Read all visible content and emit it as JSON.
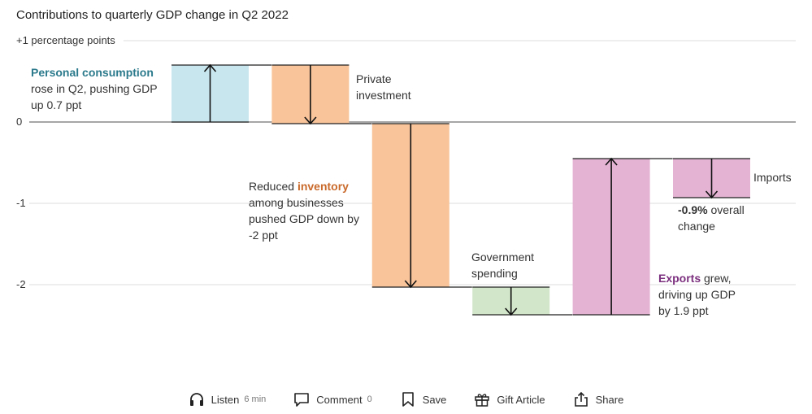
{
  "chart_data": {
    "type": "waterfall",
    "title": "Contributions to quarterly GDP change in Q2 2022",
    "y_unit_label": "+1 percentage points",
    "ylim": [
      -2.45,
      1.3
    ],
    "y_ticks": [
      1,
      0,
      -1,
      -2
    ],
    "y_tick_labels": [
      "+1 percentage points",
      "0",
      "-1",
      "-2"
    ],
    "grid": true,
    "steps": [
      {
        "name": "Personal consumption",
        "start": 0,
        "end": 0.7,
        "color": "#c8e6ee"
      },
      {
        "name": "Private investment",
        "start": 0.7,
        "end": -0.02,
        "color": "#f9c49a"
      },
      {
        "name": "inventory",
        "start": -0.02,
        "end": -2.03,
        "color": "#f9c49a"
      },
      {
        "name": "Government spending",
        "start": -2.03,
        "end": -2.37,
        "color": "#d2e6c9"
      },
      {
        "name": "Exports",
        "start": -2.37,
        "end": -0.45,
        "color": "#e4b3d3"
      },
      {
        "name": "Imports",
        "start": -0.45,
        "end": -0.93,
        "color": "#e4b3d3"
      }
    ],
    "overall_change": -0.9
  },
  "annotations": {
    "personal_consumption": {
      "bold": "Personal consumption",
      "bold_color": "#2b7a8c",
      "line1": "rose in Q2, pushing GDP",
      "line2": "up 0.7 ppt"
    },
    "private_investment": {
      "line1": "Private",
      "line2": "investment"
    },
    "inventory": {
      "pre": "Reduced ",
      "bold": "inventory",
      "bold_color": "#c96a2b",
      "line2": "among businesses",
      "line3": "pushed GDP down by",
      "line4": "-2 ppt"
    },
    "government": {
      "line1": "Government",
      "line2": "spending"
    },
    "exports": {
      "bold": "Exports",
      "bold_color": "#7b2f7e",
      "rest": " grew,",
      "line2": "driving up GDP",
      "line3": "by 1.9 ppt"
    },
    "imports": {
      "line1": "Imports"
    },
    "overall": {
      "bold": "-0.9%",
      "rest": " overall",
      "line2": "change"
    }
  },
  "toolbar": {
    "listen_label": "Listen",
    "listen_sub": "6 min",
    "comment_label": "Comment",
    "comment_count": "0",
    "save_label": "Save",
    "gift_label": "Gift Article",
    "share_label": "Share",
    "icons": [
      "headphones-icon",
      "comment-icon",
      "bookmark-icon",
      "gift-icon",
      "share-icon"
    ]
  }
}
